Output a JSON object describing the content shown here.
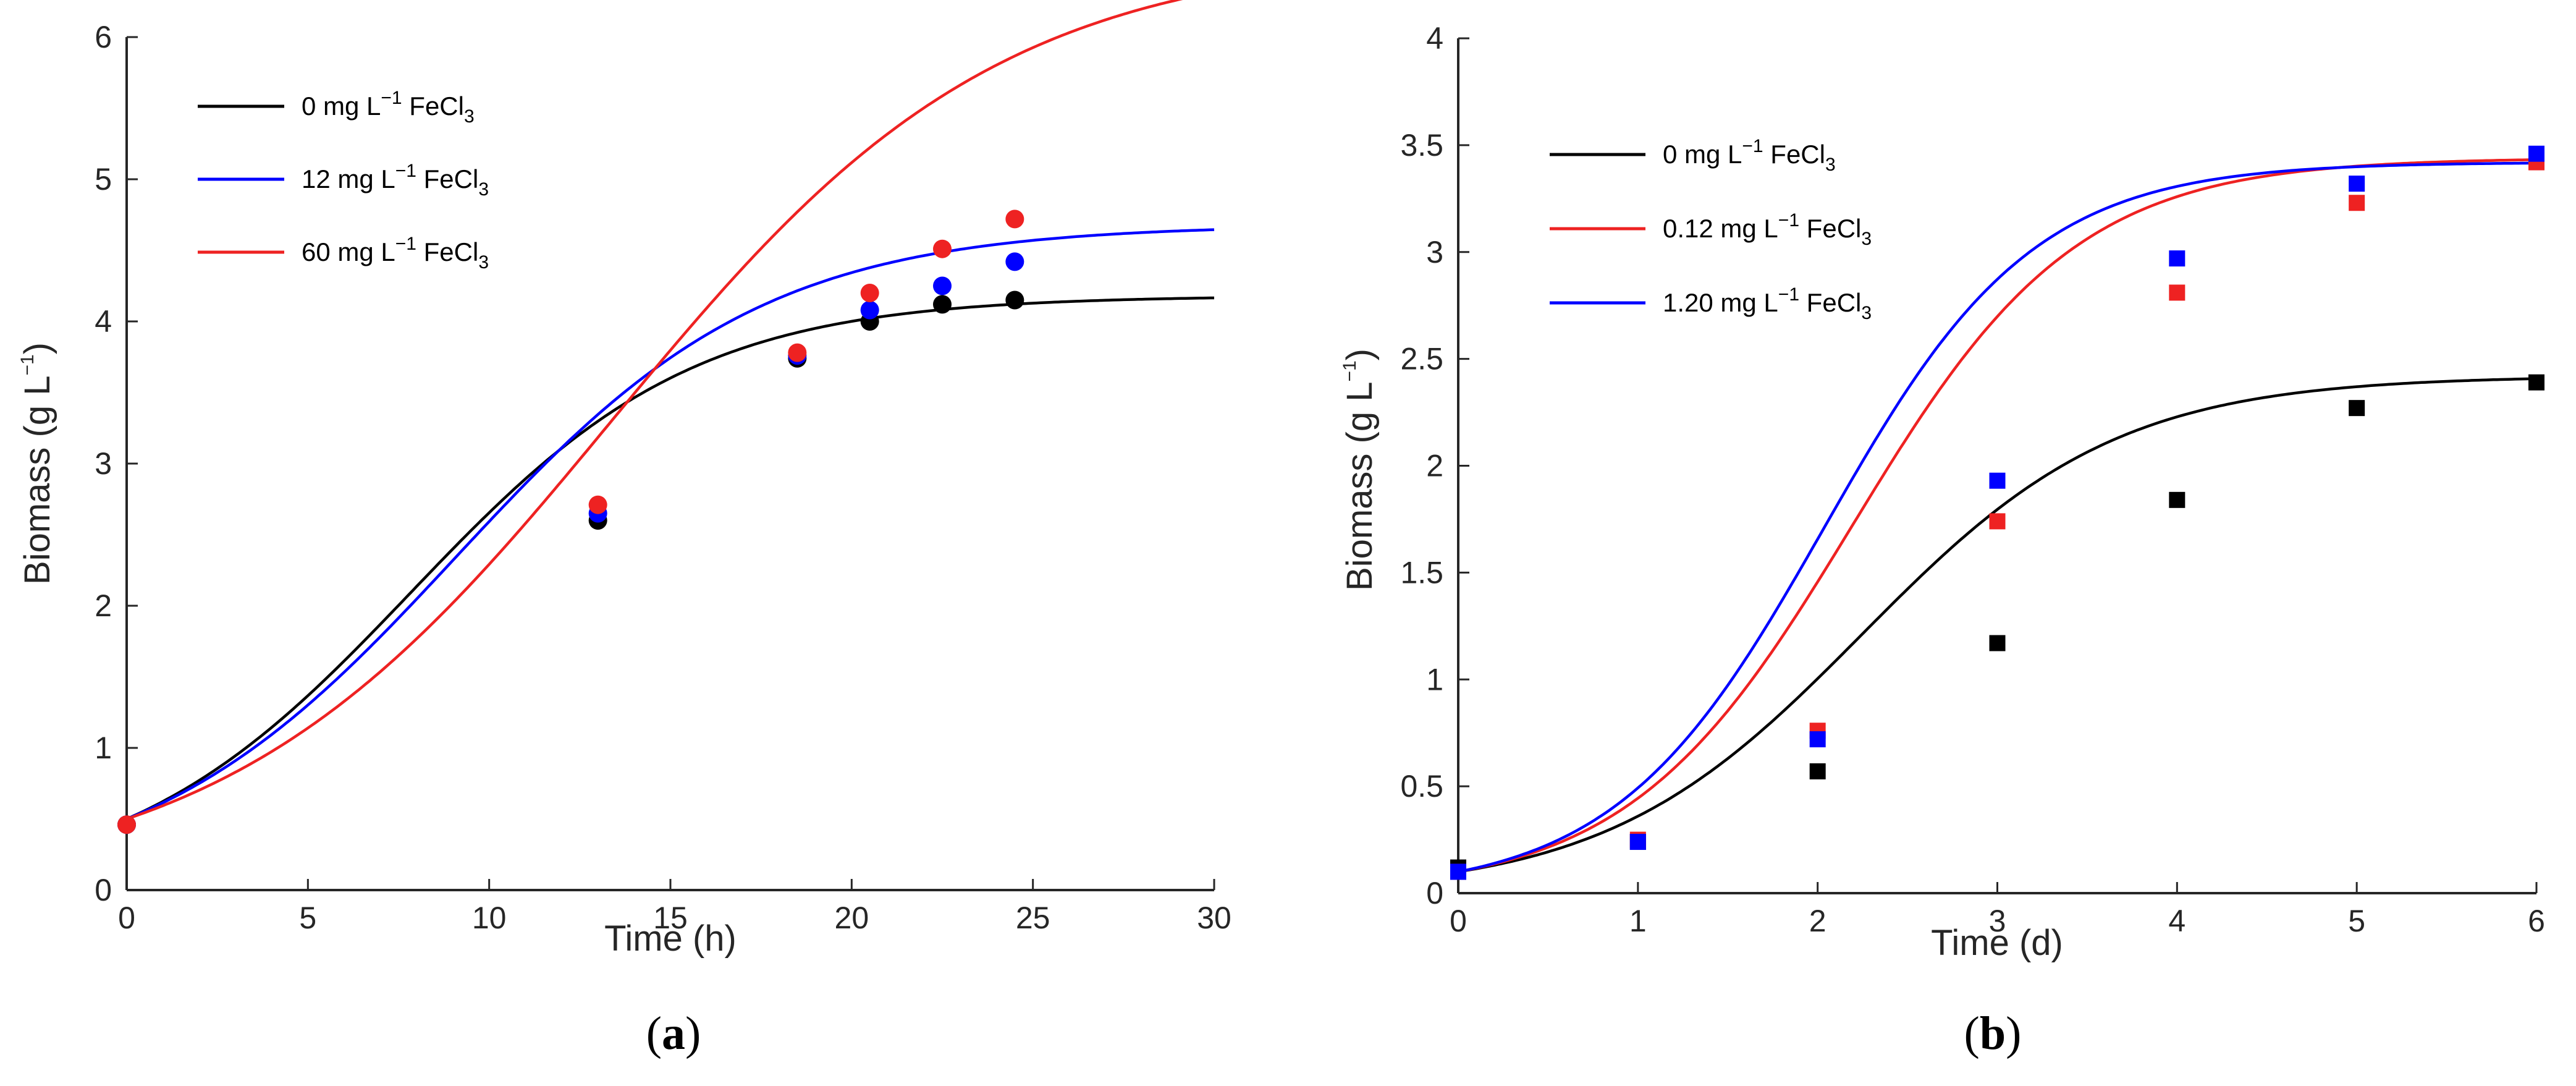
{
  "chart_data": [
    {
      "type": "line",
      "panel_label_open": "(",
      "panel_label_letter": "a",
      "panel_label_close": ")",
      "title": "",
      "xlabel": "Time (h)",
      "ylabel_main": "Biomass (g L",
      "ylabel_sup": "−1",
      "ylabel_close": ")",
      "xlim": [
        0,
        30
      ],
      "ylim": [
        0,
        6
      ],
      "xticks": [
        0,
        5,
        10,
        15,
        20,
        25,
        30
      ],
      "yticks": [
        0,
        1,
        2,
        3,
        4,
        5,
        6
      ],
      "marker": "circle",
      "grid": false,
      "legend_position": "top-left",
      "fit_model": {
        "type": "logistic",
        "x0_at_zero": 0.5
      },
      "series": [
        {
          "name_prefix": "0 mg L",
          "name_sup": "−1",
          "name_mid": " FeCl",
          "name_sub": "3",
          "color": "#000000",
          "fit": {
            "K": 4.18,
            "r": 0.255
          },
          "points": [
            [
              0,
              0.46
            ],
            [
              13,
              2.6
            ],
            [
              18.5,
              3.74
            ],
            [
              20.5,
              4.0
            ],
            [
              22.5,
              4.12
            ],
            [
              24.5,
              4.15
            ]
          ]
        },
        {
          "name_prefix": "12 mg L",
          "name_sup": "−1",
          "name_mid": " FeCl",
          "name_sub": "3",
          "color": "#0000ff",
          "fit": {
            "K": 4.68,
            "r": 0.234
          },
          "points": [
            [
              0,
              0.46
            ],
            [
              13,
              2.65
            ],
            [
              18.5,
              3.76
            ],
            [
              20.5,
              4.08
            ],
            [
              22.5,
              4.25
            ],
            [
              24.5,
              4.42
            ]
          ]
        },
        {
          "name_prefix": "60 mg L",
          "name_sup": "−1",
          "name_mid": " FeCl",
          "name_sub": "3",
          "color": "#ee2222",
          "fit": {
            "K": 6.6,
            "r": 0.187
          },
          "points": [
            [
              0,
              0.46
            ],
            [
              13,
              2.71
            ],
            [
              18.5,
              3.78
            ],
            [
              20.5,
              4.2
            ],
            [
              22.5,
              4.51
            ],
            [
              24.5,
              4.72
            ]
          ]
        }
      ]
    },
    {
      "type": "line",
      "panel_label_open": "(",
      "panel_label_letter": "b",
      "panel_label_close": ")",
      "title": "",
      "xlabel": "Time (d)",
      "ylabel_main": "Biomass (g L",
      "ylabel_sup": "−1",
      "ylabel_close": ")",
      "xlim": [
        0,
        6
      ],
      "ylim": [
        0,
        4
      ],
      "xticks": [
        0,
        1,
        2,
        3,
        4,
        5,
        6
      ],
      "yticks": [
        0,
        0.5,
        1,
        1.5,
        2,
        2.5,
        3,
        3.5,
        4
      ],
      "marker": "square",
      "grid": false,
      "legend_position": "top-left",
      "fit_model": {
        "type": "logistic",
        "x0_at_zero": 0.1
      },
      "series": [
        {
          "name_prefix": "0 mg L",
          "name_sup": "−1",
          "name_mid": " FeCl",
          "name_sub": "3",
          "color": "#000000",
          "fit": {
            "K": 2.42,
            "r": 1.4
          },
          "points": [
            [
              0,
              0.12
            ],
            [
              1,
              0.24
            ],
            [
              2,
              0.57
            ],
            [
              3,
              1.17
            ],
            [
              4,
              1.84
            ],
            [
              5,
              2.27
            ],
            [
              6,
              2.39
            ]
          ]
        },
        {
          "name_prefix": "0.12 mg L",
          "name_sup": "−1",
          "name_mid": " FeCl",
          "name_sub": "3",
          "color": "#ee2222",
          "fit": {
            "K": 3.44,
            "r": 1.6
          },
          "points": [
            [
              0,
              0.1
            ],
            [
              1,
              0.25
            ],
            [
              2,
              0.76
            ],
            [
              3,
              1.74
            ],
            [
              4,
              2.81
            ],
            [
              5,
              3.23
            ],
            [
              6,
              3.42
            ]
          ]
        },
        {
          "name_prefix": "1.20 mg L",
          "name_sup": "−1",
          "name_mid": " FeCl",
          "name_sub": "3",
          "color": "#0000ff",
          "fit": {
            "K": 3.42,
            "r": 1.72
          },
          "points": [
            [
              0,
              0.1
            ],
            [
              1,
              0.24
            ],
            [
              2,
              0.72
            ],
            [
              3,
              1.93
            ],
            [
              4,
              2.97
            ],
            [
              5,
              3.32
            ],
            [
              6,
              3.46
            ]
          ]
        }
      ]
    }
  ]
}
